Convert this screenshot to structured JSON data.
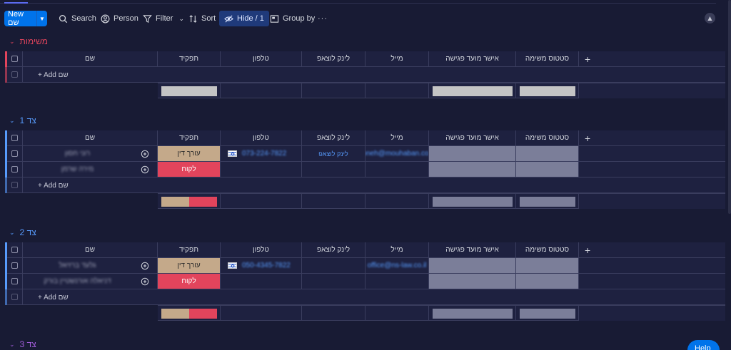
{
  "toolbar": {
    "new_label": "New",
    "new_hebrew": "שם",
    "search": "Search",
    "person": "Person",
    "filter": "Filter",
    "sort": "Sort",
    "hide": "Hide / 1",
    "group_by": "Group by",
    "more": "···"
  },
  "columns": {
    "name": "שם",
    "role": "תפקיד",
    "phone": "טלפון",
    "whatsapp": "לינק לוצאפ",
    "email": "מייל",
    "meeting": "אישר מועד פגישה",
    "status": "סטטוס משימה",
    "add": "+"
  },
  "add_item": "+ Add שם",
  "colors": {
    "group_tasks": "#e2445c",
    "group_side1": "#579bfc",
    "group_side2": "#579bfc",
    "group_side3": "#a25ddc",
    "lawyer": "#c4a98a",
    "client": "#e2445c"
  },
  "groups": [
    {
      "title": "משימות",
      "rows": []
    },
    {
      "title": "צד 1",
      "rows": [
        {
          "name": "רוני חסון",
          "role": "עורך דין",
          "phone": "073-224-7822",
          "whatsapp": "לינק לוצאפ",
          "email": "roneh@mouhaban.co.il"
        },
        {
          "name": "מירה שרמן",
          "role": "לקוח",
          "phone": "",
          "whatsapp": "",
          "email": ""
        }
      ]
    },
    {
      "title": "צד 2",
      "rows": [
        {
          "name": "גלעד ברזיאל",
          "role": "עורך דין",
          "phone": "050-4345-7822",
          "whatsapp": "",
          "email": "office@ns-law.co.il"
        },
        {
          "name": "דניאלה אורנשטיין בורק",
          "role": "לקוח",
          "phone": "",
          "whatsapp": "",
          "email": ""
        }
      ]
    },
    {
      "title": "צד 3",
      "rows": []
    }
  ],
  "help": "Help"
}
